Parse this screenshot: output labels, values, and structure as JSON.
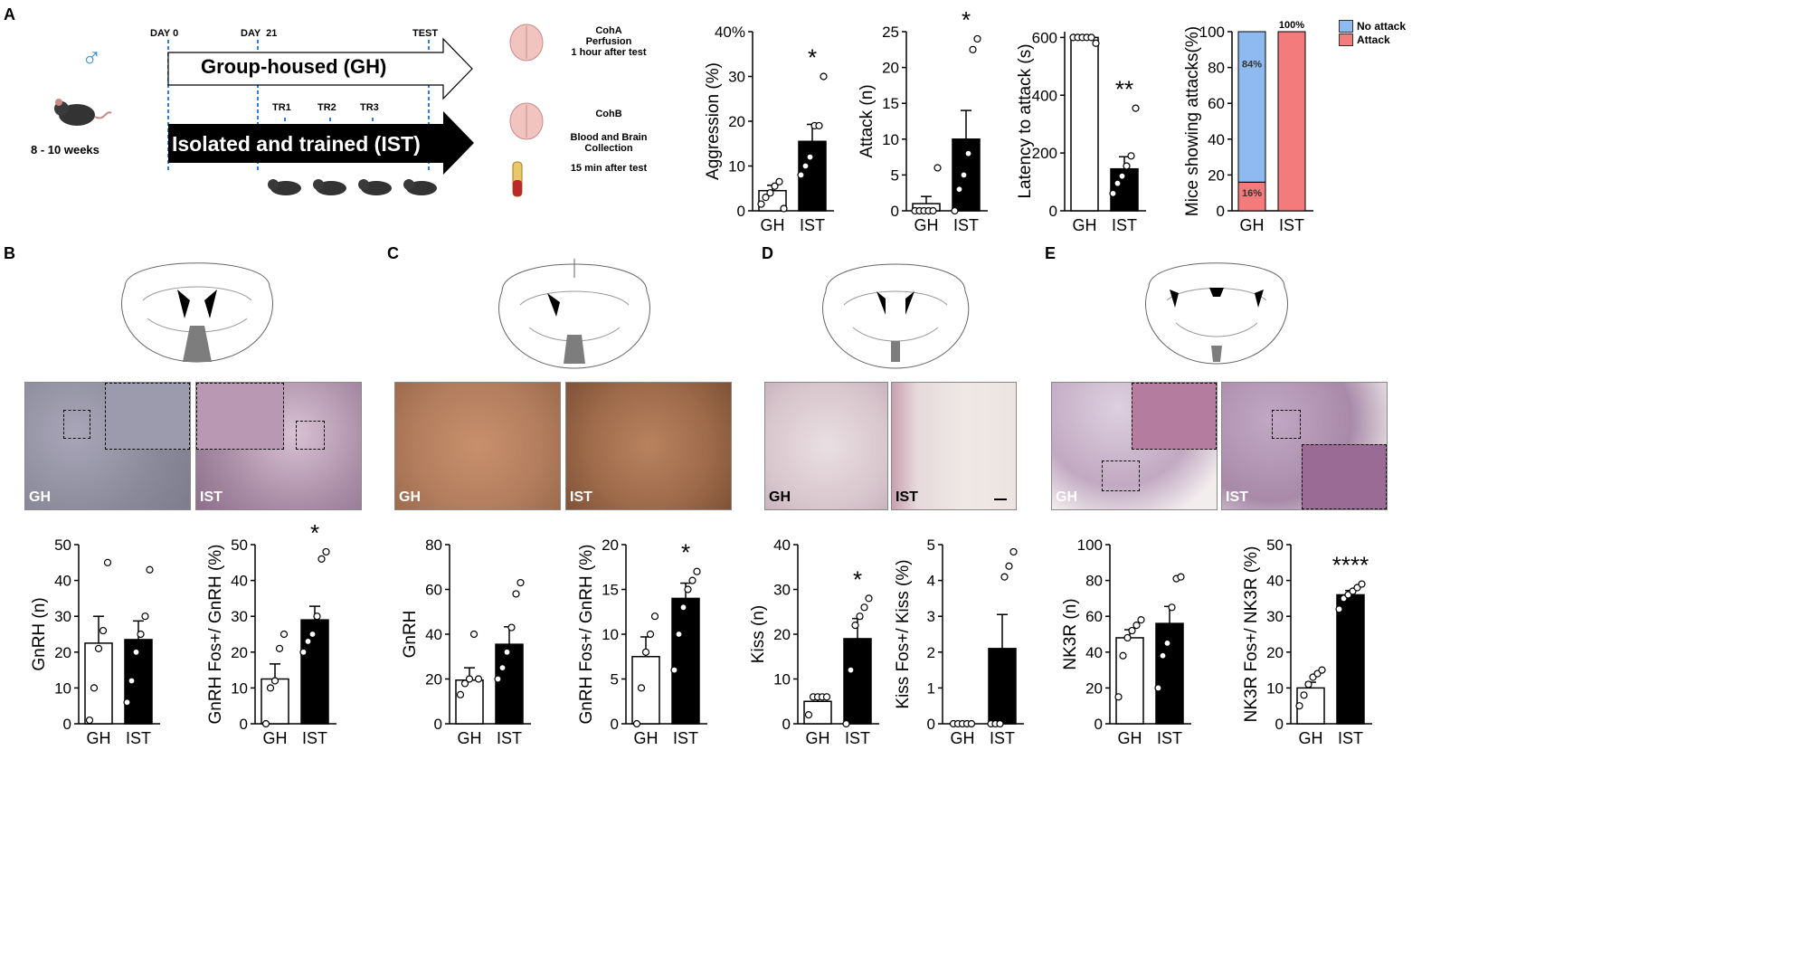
{
  "panels": {
    "a": "A",
    "b": "B",
    "c": "C",
    "d": "D",
    "e": "E"
  },
  "schematic": {
    "sex_symbol": "♂",
    "age": "8 - 10 weeks",
    "day0": "DAY 0",
    "day21": "DAY  21",
    "test": "TEST",
    "gh_label": "Group-housed (GH)",
    "ist_label": "Isolated and trained (IST)",
    "tr1": "TR1",
    "tr2": "TR2",
    "tr3": "TR3",
    "coha_title": "CohA",
    "coha_line1": "Perfusion",
    "coha_line2": "1 hour after test",
    "cohb_title": "CohB",
    "cohb_line1": "Blood and Brain",
    "cohb_line2": "Collection",
    "cohb_line3": "15 min after test"
  },
  "photos": {
    "b_gh": "GH",
    "b_ist": "IST",
    "c_gh": "GH",
    "c_ist": "IST",
    "d_gh": "GH",
    "d_ist": "IST",
    "e_gh": "GH",
    "e_ist": "IST"
  },
  "legend": {
    "no_attack": "No attack",
    "attack": "Attack",
    "no_attack_color": "#8fbaf0",
    "attack_color": "#f47b7b"
  },
  "chart_data": [
    {
      "id": "aggression",
      "type": "bar",
      "categories": [
        "GH",
        "IST"
      ],
      "values": [
        4.5,
        15.5
      ],
      "errors": [
        1.2,
        3.8
      ],
      "points": [
        [
          1.5,
          3,
          4,
          5.5,
          6.5,
          0.5
        ],
        [
          8,
          10,
          12,
          19,
          19,
          30
        ]
      ],
      "ylabel": "Aggression (%)",
      "ylim": [
        0,
        40
      ],
      "yticks": [
        0,
        10,
        20,
        30,
        40
      ],
      "yticklabels": [
        "0",
        "10",
        "20",
        "30",
        "40%"
      ],
      "significance": "*"
    },
    {
      "id": "attack",
      "type": "bar",
      "categories": [
        "GH",
        "IST"
      ],
      "values": [
        1,
        10
      ],
      "errors": [
        1,
        4
      ],
      "points": [
        [
          0,
          0,
          0,
          0,
          0,
          6
        ],
        [
          0,
          3,
          5,
          8,
          22.5,
          24
        ]
      ],
      "ylabel": "Attack (n)",
      "ylim": [
        0,
        25
      ],
      "yticks": [
        0,
        5,
        10,
        15,
        20,
        25
      ],
      "yticklabels": [
        "0",
        "5",
        "10",
        "15",
        "20",
        "25"
      ],
      "significance": "*"
    },
    {
      "id": "latency",
      "type": "bar",
      "categories": [
        "GH",
        "IST"
      ],
      "values": [
        600,
        145
      ],
      "errors": [
        0,
        42
      ],
      "points": [
        [
          600,
          600,
          600,
          600,
          600,
          580
        ],
        [
          60,
          95,
          120,
          155,
          190,
          355
        ]
      ],
      "ylabel": "Latency to attack (s)",
      "ylim": [
        0,
        620
      ],
      "yticks": [
        0,
        200,
        400,
        600
      ],
      "yticklabels": [
        "0",
        "200",
        "400",
        "600"
      ],
      "significance": "**"
    },
    {
      "id": "mice_showing",
      "type": "stacked-bar",
      "categories": [
        "GH",
        "IST"
      ],
      "series": [
        {
          "name": "Attack",
          "values": [
            16,
            100
          ]
        },
        {
          "name": "No attack",
          "values": [
            84,
            0
          ]
        }
      ],
      "bar_labels": [
        "84%",
        "16%",
        "100%"
      ],
      "ylabel": "Mice showing attacks(%)",
      "ylim": [
        0,
        100
      ],
      "yticks": [
        0,
        20,
        40,
        60,
        80,
        100
      ],
      "yticklabels": [
        "0",
        "20",
        "40",
        "60",
        "80",
        "100"
      ]
    },
    {
      "id": "b_gnrh",
      "type": "bar",
      "categories": [
        "GH",
        "IST"
      ],
      "values": [
        22.5,
        23.5
      ],
      "errors": [
        7.5,
        5.2
      ],
      "points": [
        [
          1,
          10,
          21,
          26,
          45
        ],
        [
          6,
          12,
          20,
          25,
          30,
          43
        ]
      ],
      "ylabel": "GnRH (n)",
      "ylim": [
        0,
        50
      ],
      "yticks": [
        0,
        10,
        20,
        30,
        40,
        50
      ],
      "yticklabels": [
        "0",
        "10",
        "20",
        "30",
        "40",
        "50"
      ]
    },
    {
      "id": "b_gnrh_fos",
      "type": "bar",
      "categories": [
        "GH",
        "IST"
      ],
      "values": [
        12.5,
        29
      ],
      "errors": [
        4.2,
        3.8
      ],
      "points": [
        [
          0,
          10,
          12,
          21,
          25
        ],
        [
          20,
          23,
          25,
          30,
          46,
          48
        ]
      ],
      "ylabel": "GnRH Fos+/ GnRH (%)",
      "ylim": [
        0,
        50
      ],
      "yticks": [
        0,
        10,
        20,
        30,
        40,
        50
      ],
      "yticklabels": [
        "0",
        "10",
        "20",
        "30",
        "40",
        "50"
      ],
      "significance": "*"
    },
    {
      "id": "c_gnrh",
      "type": "bar",
      "categories": [
        "GH",
        "IST"
      ],
      "values": [
        19.5,
        35.5
      ],
      "errors": [
        5.5,
        7.8
      ],
      "points": [
        [
          13,
          18,
          20,
          40,
          20
        ],
        [
          20,
          25,
          32,
          43,
          58,
          63
        ]
      ],
      "ylabel": "GnRH",
      "ylim": [
        0,
        80
      ],
      "yticks": [
        0,
        20,
        40,
        60,
        80
      ],
      "yticklabels": [
        "0",
        "20",
        "40",
        "60",
        "80"
      ]
    },
    {
      "id": "c_gnrh_fos",
      "type": "bar",
      "categories": [
        "GH",
        "IST"
      ],
      "values": [
        7.5,
        14
      ],
      "errors": [
        2.2,
        1.7
      ],
      "points": [
        [
          0,
          4,
          8,
          10,
          12
        ],
        [
          6,
          10,
          13,
          15,
          16,
          17
        ]
      ],
      "ylabel": "GnRH Fos+/ GnRH (%)",
      "ylim": [
        0,
        20
      ],
      "yticks": [
        0,
        5,
        10,
        15,
        20
      ],
      "yticklabels": [
        "0",
        "5",
        "10",
        "15",
        "20"
      ],
      "significance": "*"
    },
    {
      "id": "d_kiss",
      "type": "bar",
      "categories": [
        "GH",
        "IST"
      ],
      "values": [
        5,
        19
      ],
      "errors": [
        1.4,
        4.5
      ],
      "points": [
        [
          2,
          6,
          6,
          6,
          6
        ],
        [
          0,
          12,
          22,
          24,
          26,
          28
        ]
      ],
      "ylabel": "Kiss (n)",
      "ylim": [
        0,
        40
      ],
      "yticks": [
        0,
        10,
        20,
        30,
        40
      ],
      "yticklabels": [
        "0",
        "10",
        "20",
        "30",
        "40"
      ],
      "significance": "*"
    },
    {
      "id": "d_kiss_fos",
      "type": "bar",
      "categories": [
        "GH",
        "IST"
      ],
      "values": [
        0,
        2.1
      ],
      "errors": [
        0,
        0.95
      ],
      "points": [
        [
          0,
          0,
          0,
          0,
          0
        ],
        [
          0,
          0,
          0,
          4.1,
          4.4,
          4.8
        ]
      ],
      "ylabel": "Kiss Fos+/ Kiss (%)",
      "ylim": [
        0,
        5
      ],
      "yticks": [
        0,
        1,
        2,
        3,
        4,
        5
      ],
      "yticklabels": [
        "0",
        "1",
        "2",
        "3",
        "4",
        "5"
      ]
    },
    {
      "id": "e_nk3r",
      "type": "bar",
      "categories": [
        "GH",
        "IST"
      ],
      "values": [
        48,
        56
      ],
      "errors": [
        4.5,
        9.5
      ],
      "points": [
        [
          15,
          38,
          48,
          52,
          55,
          58
        ],
        [
          20,
          38,
          45,
          65,
          81,
          82
        ]
      ],
      "ylabel": "NK3R (n)",
      "ylim": [
        0,
        100
      ],
      "yticks": [
        0,
        20,
        40,
        60,
        80,
        100
      ],
      "yticklabels": [
        "0",
        "20",
        "40",
        "60",
        "80",
        "100"
      ]
    },
    {
      "id": "e_nk3r_fos",
      "type": "bar",
      "categories": [
        "GH",
        "IST"
      ],
      "values": [
        10,
        36
      ],
      "errors": [
        1.6,
        1.2
      ],
      "points": [
        [
          5,
          8,
          11,
          13,
          14,
          15
        ],
        [
          32,
          35,
          36,
          37,
          38,
          39
        ]
      ],
      "ylabel": "NK3R Fos+/ NK3R (%)",
      "ylim": [
        0,
        50
      ],
      "yticks": [
        0,
        10,
        20,
        30,
        40,
        50
      ],
      "yticklabels": [
        "0",
        "10",
        "20",
        "30",
        "40",
        "50"
      ],
      "significance": "****"
    }
  ]
}
